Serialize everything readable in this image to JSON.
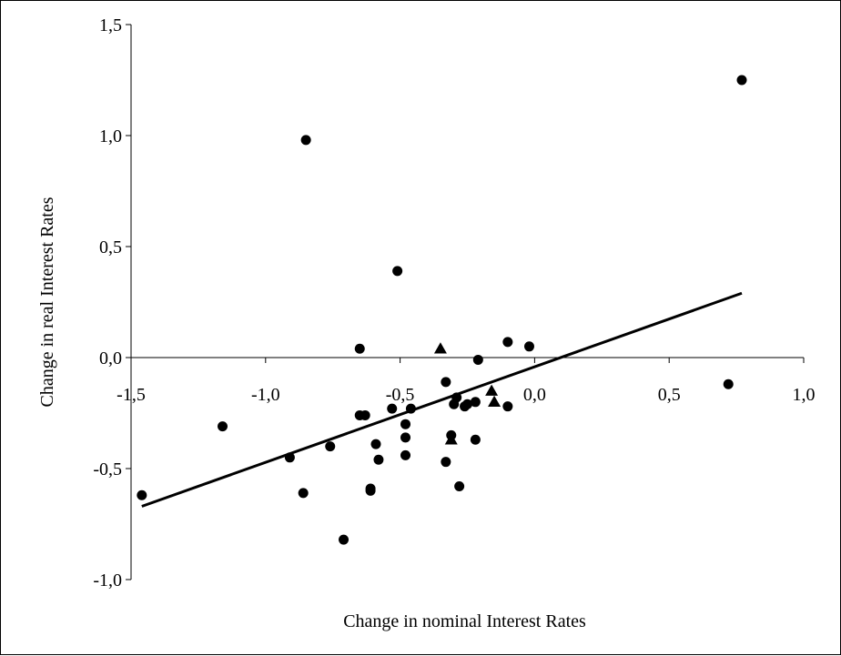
{
  "chart_data": {
    "type": "scatter",
    "title": "",
    "xlabel": "Change in nominal Interest Rates",
    "ylabel": "Change in real Interest Rates",
    "xlim": [
      -1.5,
      1.0
    ],
    "ylim": [
      -1.0,
      1.5
    ],
    "x_ticks": [
      -1.5,
      -1.0,
      -0.5,
      0.0,
      0.5,
      1.0
    ],
    "y_ticks": [
      -1.0,
      -0.5,
      0.0,
      0.5,
      1.0,
      1.5
    ],
    "x_tick_labels": [
      "-1,5",
      "-1,0",
      "-0,5",
      "0,0",
      "0,5",
      "1,0"
    ],
    "y_tick_labels": [
      "-1,0",
      "-0,5",
      "0,0",
      "0,5",
      "1,0",
      "1,5"
    ],
    "grid": false,
    "series": [
      {
        "marker": "circle",
        "points": [
          [
            -1.46,
            -0.62
          ],
          [
            -1.16,
            -0.31
          ],
          [
            -0.91,
            -0.45
          ],
          [
            -0.86,
            -0.61
          ],
          [
            -0.85,
            0.98
          ],
          [
            -0.76,
            -0.4
          ],
          [
            -0.71,
            -0.82
          ],
          [
            -0.65,
            0.04
          ],
          [
            -0.65,
            -0.26
          ],
          [
            -0.63,
            -0.26
          ],
          [
            -0.61,
            -0.59
          ],
          [
            -0.61,
            -0.6
          ],
          [
            -0.59,
            -0.39
          ],
          [
            -0.58,
            -0.46
          ],
          [
            -0.53,
            -0.23
          ],
          [
            -0.51,
            0.39
          ],
          [
            -0.48,
            -0.3
          ],
          [
            -0.48,
            -0.36
          ],
          [
            -0.48,
            -0.44
          ],
          [
            -0.46,
            -0.23
          ],
          [
            -0.33,
            -0.11
          ],
          [
            -0.33,
            -0.47
          ],
          [
            -0.31,
            -0.35
          ],
          [
            -0.3,
            -0.21
          ],
          [
            -0.29,
            -0.18
          ],
          [
            -0.28,
            -0.58
          ],
          [
            -0.26,
            -0.22
          ],
          [
            -0.25,
            -0.21
          ],
          [
            -0.22,
            -0.2
          ],
          [
            -0.22,
            -0.37
          ],
          [
            -0.21,
            -0.01
          ],
          [
            -0.1,
            0.07
          ],
          [
            -0.1,
            -0.22
          ],
          [
            -0.02,
            0.05
          ],
          [
            0.72,
            -0.12
          ],
          [
            0.77,
            1.25
          ]
        ]
      },
      {
        "marker": "triangle",
        "points": [
          [
            -0.35,
            0.04
          ],
          [
            -0.31,
            -0.37
          ],
          [
            -0.16,
            -0.15
          ],
          [
            -0.15,
            -0.2
          ]
        ]
      }
    ],
    "trendline": {
      "x": [
        -1.46,
        0.77
      ],
      "y": [
        -0.67,
        0.29
      ]
    }
  }
}
